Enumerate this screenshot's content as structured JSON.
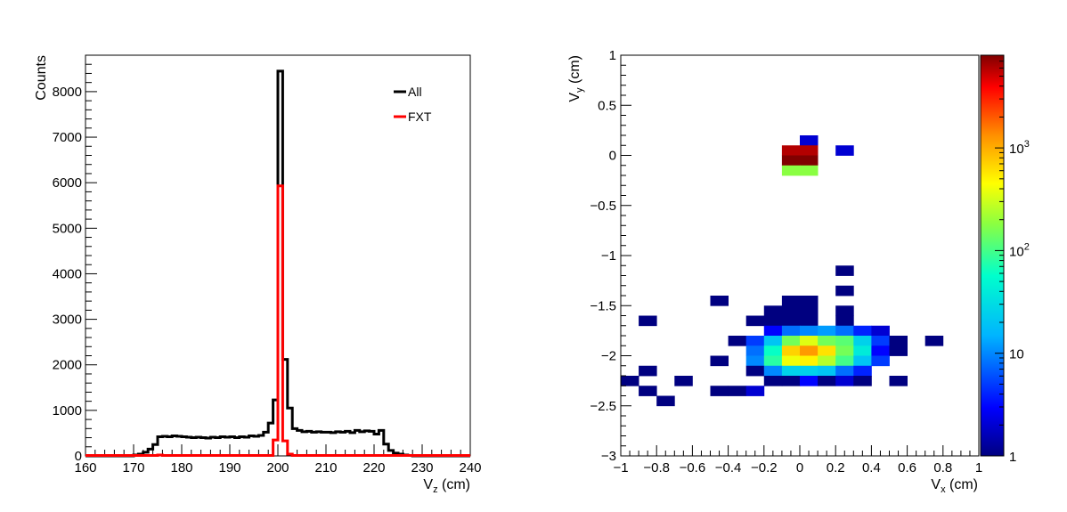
{
  "chart_data": [
    {
      "type": "histogram",
      "xlabel": "V",
      "xlabel_sub": "z",
      "xlabel_unit": " (cm)",
      "ylabel": "Counts",
      "xlim": [
        160,
        240
      ],
      "ylim": [
        0,
        8800
      ],
      "xticks": [
        160,
        170,
        180,
        190,
        200,
        210,
        220,
        230,
        240
      ],
      "yticks": [
        0,
        1000,
        2000,
        3000,
        4000,
        5000,
        6000,
        7000,
        8000
      ],
      "legend_position": "top-right",
      "bin_width": 1,
      "series": [
        {
          "name": "All",
          "color": "#000000",
          "bins": [
            [
              160,
              0
            ],
            [
              161,
              0
            ],
            [
              162,
              0
            ],
            [
              163,
              0
            ],
            [
              164,
              0
            ],
            [
              165,
              0
            ],
            [
              166,
              0
            ],
            [
              167,
              0
            ],
            [
              168,
              0
            ],
            [
              169,
              0
            ],
            [
              170,
              20
            ],
            [
              171,
              40
            ],
            [
              172,
              80
            ],
            [
              173,
              150
            ],
            [
              174,
              250
            ],
            [
              175,
              420
            ],
            [
              176,
              430
            ],
            [
              177,
              420
            ],
            [
              178,
              440
            ],
            [
              179,
              430
            ],
            [
              180,
              420
            ],
            [
              181,
              410
            ],
            [
              182,
              400
            ],
            [
              183,
              410
            ],
            [
              184,
              400
            ],
            [
              185,
              390
            ],
            [
              186,
              410
            ],
            [
              187,
              400
            ],
            [
              188,
              420
            ],
            [
              189,
              410
            ],
            [
              190,
              420
            ],
            [
              191,
              400
            ],
            [
              192,
              420
            ],
            [
              193,
              410
            ],
            [
              194,
              440
            ],
            [
              195,
              430
            ],
            [
              196,
              450
            ],
            [
              197,
              520
            ],
            [
              198,
              720
            ],
            [
              199,
              1230
            ],
            [
              200,
              8450
            ],
            [
              201,
              2120
            ],
            [
              202,
              1050
            ],
            [
              203,
              600
            ],
            [
              204,
              560
            ],
            [
              205,
              530
            ],
            [
              206,
              540
            ],
            [
              207,
              520
            ],
            [
              208,
              530
            ],
            [
              209,
              520
            ],
            [
              210,
              520
            ],
            [
              211,
              510
            ],
            [
              212,
              530
            ],
            [
              213,
              520
            ],
            [
              214,
              540
            ],
            [
              215,
              510
            ],
            [
              216,
              560
            ],
            [
              217,
              530
            ],
            [
              218,
              550
            ],
            [
              219,
              540
            ],
            [
              220,
              480
            ],
            [
              221,
              560
            ],
            [
              222,
              260
            ],
            [
              223,
              120
            ],
            [
              224,
              60
            ],
            [
              225,
              40
            ],
            [
              226,
              20
            ],
            [
              227,
              10
            ],
            [
              228,
              0
            ],
            [
              229,
              0
            ],
            [
              230,
              0
            ],
            [
              231,
              0
            ],
            [
              232,
              0
            ],
            [
              233,
              0
            ],
            [
              234,
              0
            ],
            [
              235,
              0
            ],
            [
              236,
              0
            ],
            [
              237,
              0
            ],
            [
              238,
              0
            ],
            [
              239,
              0
            ]
          ]
        },
        {
          "name": "FXT",
          "color": "#ff0000",
          "bins": [
            [
              160,
              10
            ],
            [
              161,
              10
            ],
            [
              162,
              10
            ],
            [
              163,
              10
            ],
            [
              164,
              10
            ],
            [
              165,
              10
            ],
            [
              166,
              10
            ],
            [
              167,
              10
            ],
            [
              168,
              10
            ],
            [
              169,
              10
            ],
            [
              170,
              10
            ],
            [
              171,
              10
            ],
            [
              172,
              10
            ],
            [
              173,
              10
            ],
            [
              174,
              10
            ],
            [
              175,
              20
            ],
            [
              176,
              10
            ],
            [
              177,
              10
            ],
            [
              178,
              10
            ],
            [
              179,
              10
            ],
            [
              180,
              10
            ],
            [
              181,
              10
            ],
            [
              182,
              10
            ],
            [
              183,
              10
            ],
            [
              184,
              10
            ],
            [
              185,
              10
            ],
            [
              186,
              10
            ],
            [
              187,
              10
            ],
            [
              188,
              10
            ],
            [
              189,
              10
            ],
            [
              190,
              10
            ],
            [
              191,
              10
            ],
            [
              192,
              10
            ],
            [
              193,
              10
            ],
            [
              194,
              10
            ],
            [
              195,
              10
            ],
            [
              196,
              10
            ],
            [
              197,
              10
            ],
            [
              198,
              10
            ],
            [
              199,
              350
            ],
            [
              200,
              5930
            ],
            [
              201,
              330
            ],
            [
              202,
              40
            ],
            [
              203,
              10
            ],
            [
              204,
              10
            ],
            [
              205,
              10
            ],
            [
              206,
              10
            ],
            [
              207,
              10
            ],
            [
              208,
              10
            ],
            [
              209,
              10
            ],
            [
              210,
              10
            ],
            [
              211,
              10
            ],
            [
              212,
              10
            ],
            [
              213,
              10
            ],
            [
              214,
              10
            ],
            [
              215,
              10
            ],
            [
              216,
              10
            ],
            [
              217,
              10
            ],
            [
              218,
              10
            ],
            [
              219,
              10
            ],
            [
              220,
              10
            ],
            [
              221,
              10
            ],
            [
              222,
              10
            ],
            [
              223,
              10
            ],
            [
              224,
              10
            ],
            [
              225,
              10
            ],
            [
              226,
              10
            ],
            [
              227,
              10
            ],
            [
              228,
              10
            ],
            [
              229,
              10
            ],
            [
              230,
              10
            ],
            [
              231,
              10
            ],
            [
              232,
              10
            ],
            [
              233,
              10
            ],
            [
              234,
              10
            ],
            [
              235,
              10
            ],
            [
              236,
              10
            ],
            [
              237,
              10
            ],
            [
              238,
              10
            ],
            [
              239,
              10
            ]
          ]
        }
      ]
    },
    {
      "type": "heatmap",
      "xlabel": "V",
      "xlabel_sub": "x",
      "xlabel_unit": " (cm)",
      "ylabel": "V",
      "ylabel_sub": "y",
      "ylabel_unit": " (cm)",
      "xlim": [
        -1,
        1
      ],
      "ylim": [
        -3,
        1
      ],
      "xticks": [
        -1,
        -0.8,
        -0.6,
        -0.4,
        -0.2,
        0,
        0.2,
        0.4,
        0.6,
        0.8,
        1
      ],
      "yticks": [
        -3,
        -2.5,
        -2,
        -1.5,
        -1,
        -0.5,
        0,
        0.5,
        1
      ],
      "zscale": "log",
      "zlim": [
        1,
        8000
      ],
      "colorbar_ticks": [
        {
          "value": 1,
          "label": "1"
        },
        {
          "value": 10,
          "label": "10"
        },
        {
          "value": 100,
          "label": "10",
          "sup": "2"
        },
        {
          "value": 1000,
          "label": "10",
          "sup": "3"
        }
      ],
      "bin_x": 0.1,
      "bin_y": 0.1,
      "cells": [
        [
          0.05,
          0.15,
          2
        ],
        [
          -0.05,
          0.05,
          6000
        ],
        [
          0.05,
          0.05,
          6000
        ],
        [
          0.25,
          0.05,
          2
        ],
        [
          -0.05,
          -0.05,
          8000
        ],
        [
          0.05,
          -0.05,
          8000
        ],
        [
          -0.05,
          -0.15,
          180
        ],
        [
          0.05,
          -0.15,
          180
        ],
        [
          0.25,
          -1.15,
          1
        ],
        [
          0.25,
          -1.35,
          1
        ],
        [
          -0.45,
          -1.45,
          1
        ],
        [
          -0.05,
          -1.45,
          1
        ],
        [
          0.05,
          -1.45,
          1
        ],
        [
          -0.15,
          -1.55,
          1
        ],
        [
          -0.05,
          -1.55,
          1
        ],
        [
          0.05,
          -1.55,
          1
        ],
        [
          0.25,
          -1.55,
          1
        ],
        [
          -0.85,
          -1.65,
          1
        ],
        [
          -0.25,
          -1.65,
          1
        ],
        [
          -0.15,
          -1.65,
          1
        ],
        [
          -0.05,
          -1.65,
          1
        ],
        [
          0.05,
          -1.65,
          1
        ],
        [
          0.25,
          -1.65,
          1
        ],
        [
          -0.15,
          -1.75,
          3
        ],
        [
          -0.05,
          -1.75,
          8
        ],
        [
          0.05,
          -1.75,
          10
        ],
        [
          0.15,
          -1.75,
          12
        ],
        [
          0.25,
          -1.75,
          8
        ],
        [
          0.35,
          -1.75,
          4
        ],
        [
          0.45,
          -1.75,
          2
        ],
        [
          -0.35,
          -1.85,
          1
        ],
        [
          -0.25,
          -1.85,
          5
        ],
        [
          -0.15,
          -1.85,
          20
        ],
        [
          -0.05,
          -1.85,
          150
        ],
        [
          0.05,
          -1.85,
          350
        ],
        [
          0.15,
          -1.85,
          150
        ],
        [
          0.25,
          -1.85,
          120
        ],
        [
          0.35,
          -1.85,
          25
        ],
        [
          0.45,
          -1.85,
          5
        ],
        [
          0.55,
          -1.85,
          1
        ],
        [
          0.75,
          -1.85,
          1
        ],
        [
          -0.25,
          -1.95,
          8
        ],
        [
          -0.15,
          -1.95,
          60
        ],
        [
          -0.05,
          -1.95,
          700
        ],
        [
          0.05,
          -1.95,
          1200
        ],
        [
          0.15,
          -1.95,
          600
        ],
        [
          0.25,
          -1.95,
          150
        ],
        [
          0.35,
          -1.95,
          40
        ],
        [
          0.45,
          -1.95,
          3
        ],
        [
          0.55,
          -1.95,
          1
        ],
        [
          -0.45,
          -2.05,
          1
        ],
        [
          -0.25,
          -2.05,
          10
        ],
        [
          -0.15,
          -2.05,
          80
        ],
        [
          -0.05,
          -2.05,
          400
        ],
        [
          0.05,
          -2.05,
          500
        ],
        [
          0.15,
          -2.05,
          250
        ],
        [
          0.25,
          -2.05,
          100
        ],
        [
          0.35,
          -2.05,
          20
        ],
        [
          0.45,
          -2.05,
          5
        ],
        [
          -0.85,
          -2.15,
          1
        ],
        [
          -0.25,
          -2.15,
          1
        ],
        [
          -0.15,
          -2.15,
          10
        ],
        [
          -0.05,
          -2.15,
          25
        ],
        [
          0.05,
          -2.15,
          25
        ],
        [
          0.15,
          -2.15,
          20
        ],
        [
          0.25,
          -2.15,
          8
        ],
        [
          0.35,
          -2.15,
          4
        ],
        [
          -0.65,
          -2.25,
          1
        ],
        [
          -0.95,
          -2.25,
          1
        ],
        [
          0.55,
          -2.25,
          1
        ],
        [
          -0.15,
          -2.25,
          1
        ],
        [
          -0.05,
          -2.25,
          1
        ],
        [
          0.05,
          -2.25,
          3
        ],
        [
          0.15,
          -2.25,
          1
        ],
        [
          0.25,
          -2.25,
          2
        ],
        [
          0.35,
          -2.25,
          1
        ],
        [
          -0.85,
          -2.35,
          1
        ],
        [
          -0.35,
          -2.35,
          1
        ],
        [
          -0.45,
          -2.35,
          1
        ],
        [
          -0.25,
          -2.35,
          2
        ],
        [
          -0.75,
          -2.45,
          1
        ]
      ]
    }
  ],
  "legend": {
    "all_label": "All",
    "fxt_label": "FXT"
  }
}
